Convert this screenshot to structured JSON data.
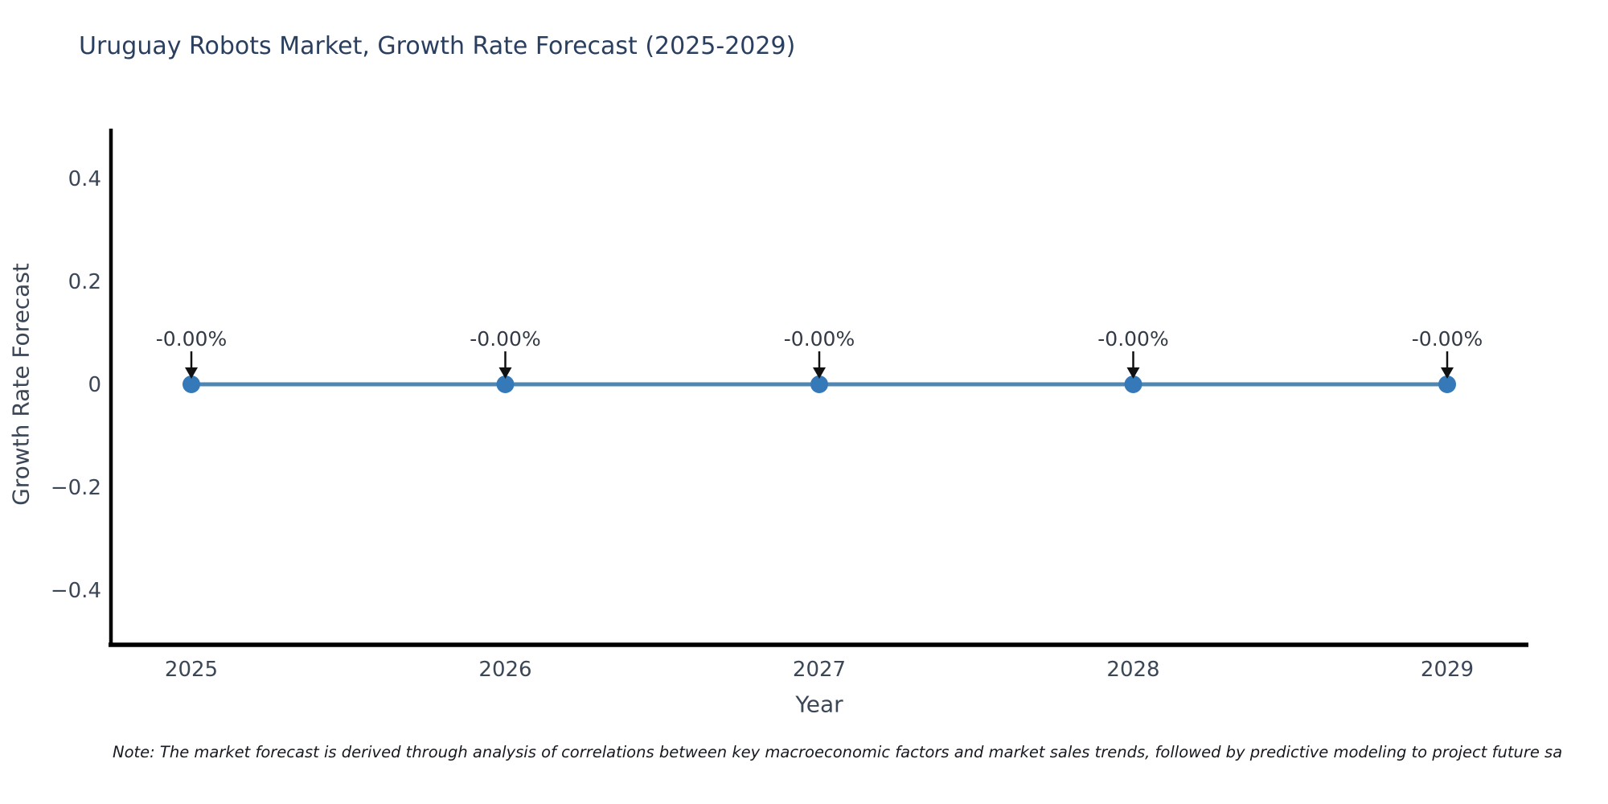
{
  "title": "Uruguay Robots Market, Growth Rate Forecast (2025-2029)",
  "footnote": "Note: The market forecast is derived through analysis of correlations between key macroeconomic factors and market sales trends, followed by predictive modeling to project future sa",
  "chart_data": {
    "type": "line",
    "title": "Uruguay Robots Market, Growth Rate Forecast (2025-2029)",
    "xlabel": "Year",
    "ylabel": "Growth Rate Forecast",
    "x": [
      2025,
      2026,
      2027,
      2028,
      2029
    ],
    "values": [
      0,
      0,
      0,
      0,
      0
    ],
    "point_labels": [
      "-0.00%",
      "-0.00%",
      "-0.00%",
      "-0.00%",
      "-0.00%"
    ],
    "yticks": [
      0.4,
      0.2,
      0,
      -0.2,
      -0.4
    ],
    "ylim": [
      -0.5,
      0.5
    ],
    "grid": false,
    "legend": "none",
    "marker_shape": "circle",
    "annotation_arrow": "down-arrow",
    "colors": {
      "line": "#5086b2",
      "marker": "#3579b8",
      "arrow": "#111111",
      "axis": "#000000",
      "tick_label": "#3b4656",
      "title": "#2a3f5f",
      "annotation": "#333a45",
      "background": "#ffffff"
    }
  }
}
